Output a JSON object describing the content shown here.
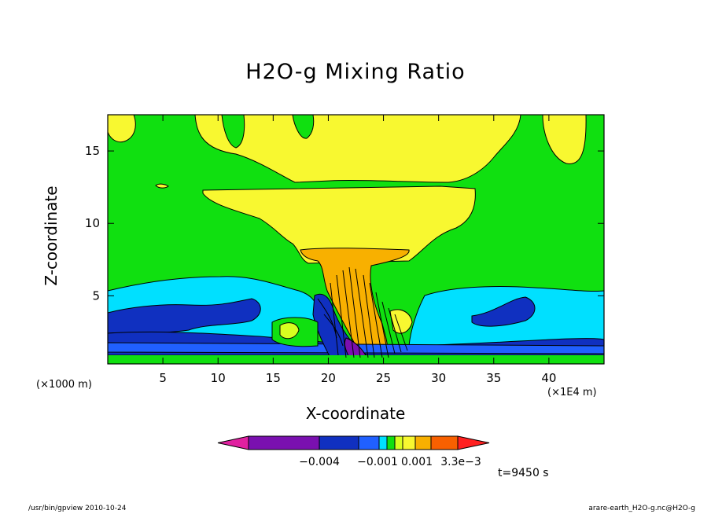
{
  "chart_data": {
    "type": "heatmap",
    "title": "H2O-g Mixing Ratio",
    "xlabel": "X-coordinate",
    "ylabel": "Z-coordinate",
    "x_unit_left": "(×1000 m)",
    "x_unit_right": "(×1E4 m)",
    "xlim": [
      0,
      45
    ],
    "ylim": [
      0.3,
      17.5
    ],
    "x_ticks": [
      5,
      10,
      15,
      20,
      25,
      30,
      35,
      40
    ],
    "y_ticks": [
      5,
      10,
      15
    ],
    "grid": false,
    "levels_colors": [
      {
        "level": "most negative",
        "color": "#e020a0"
      },
      {
        "level": "strong negative",
        "color": "#7a10b0"
      },
      {
        "level": "negative",
        "color": "#1030c0"
      },
      {
        "level": "moderate negative",
        "color": "#2060ff"
      },
      {
        "level": "weak negative",
        "color": "#00e0ff"
      },
      {
        "level": "near zero",
        "color": "#10e010"
      },
      {
        "level": "weak positive",
        "color": "#d8ff20"
      },
      {
        "level": "positive",
        "color": "#f8f830"
      },
      {
        "level": "moderate positive",
        "color": "#f8b000"
      },
      {
        "level": "strong positive",
        "color": "#f86000"
      },
      {
        "level": "most positive",
        "color": "#ff2020"
      }
    ],
    "colorbar_labels": [
      "−0.004",
      "−0.001",
      "0.001",
      "3.3e−3"
    ],
    "time_label": "t=9450 s"
  },
  "footer": {
    "left": "/usr/bin/gpview  2010-10-24",
    "right": "arare-earth_H2O-g.nc@H2O-g"
  }
}
